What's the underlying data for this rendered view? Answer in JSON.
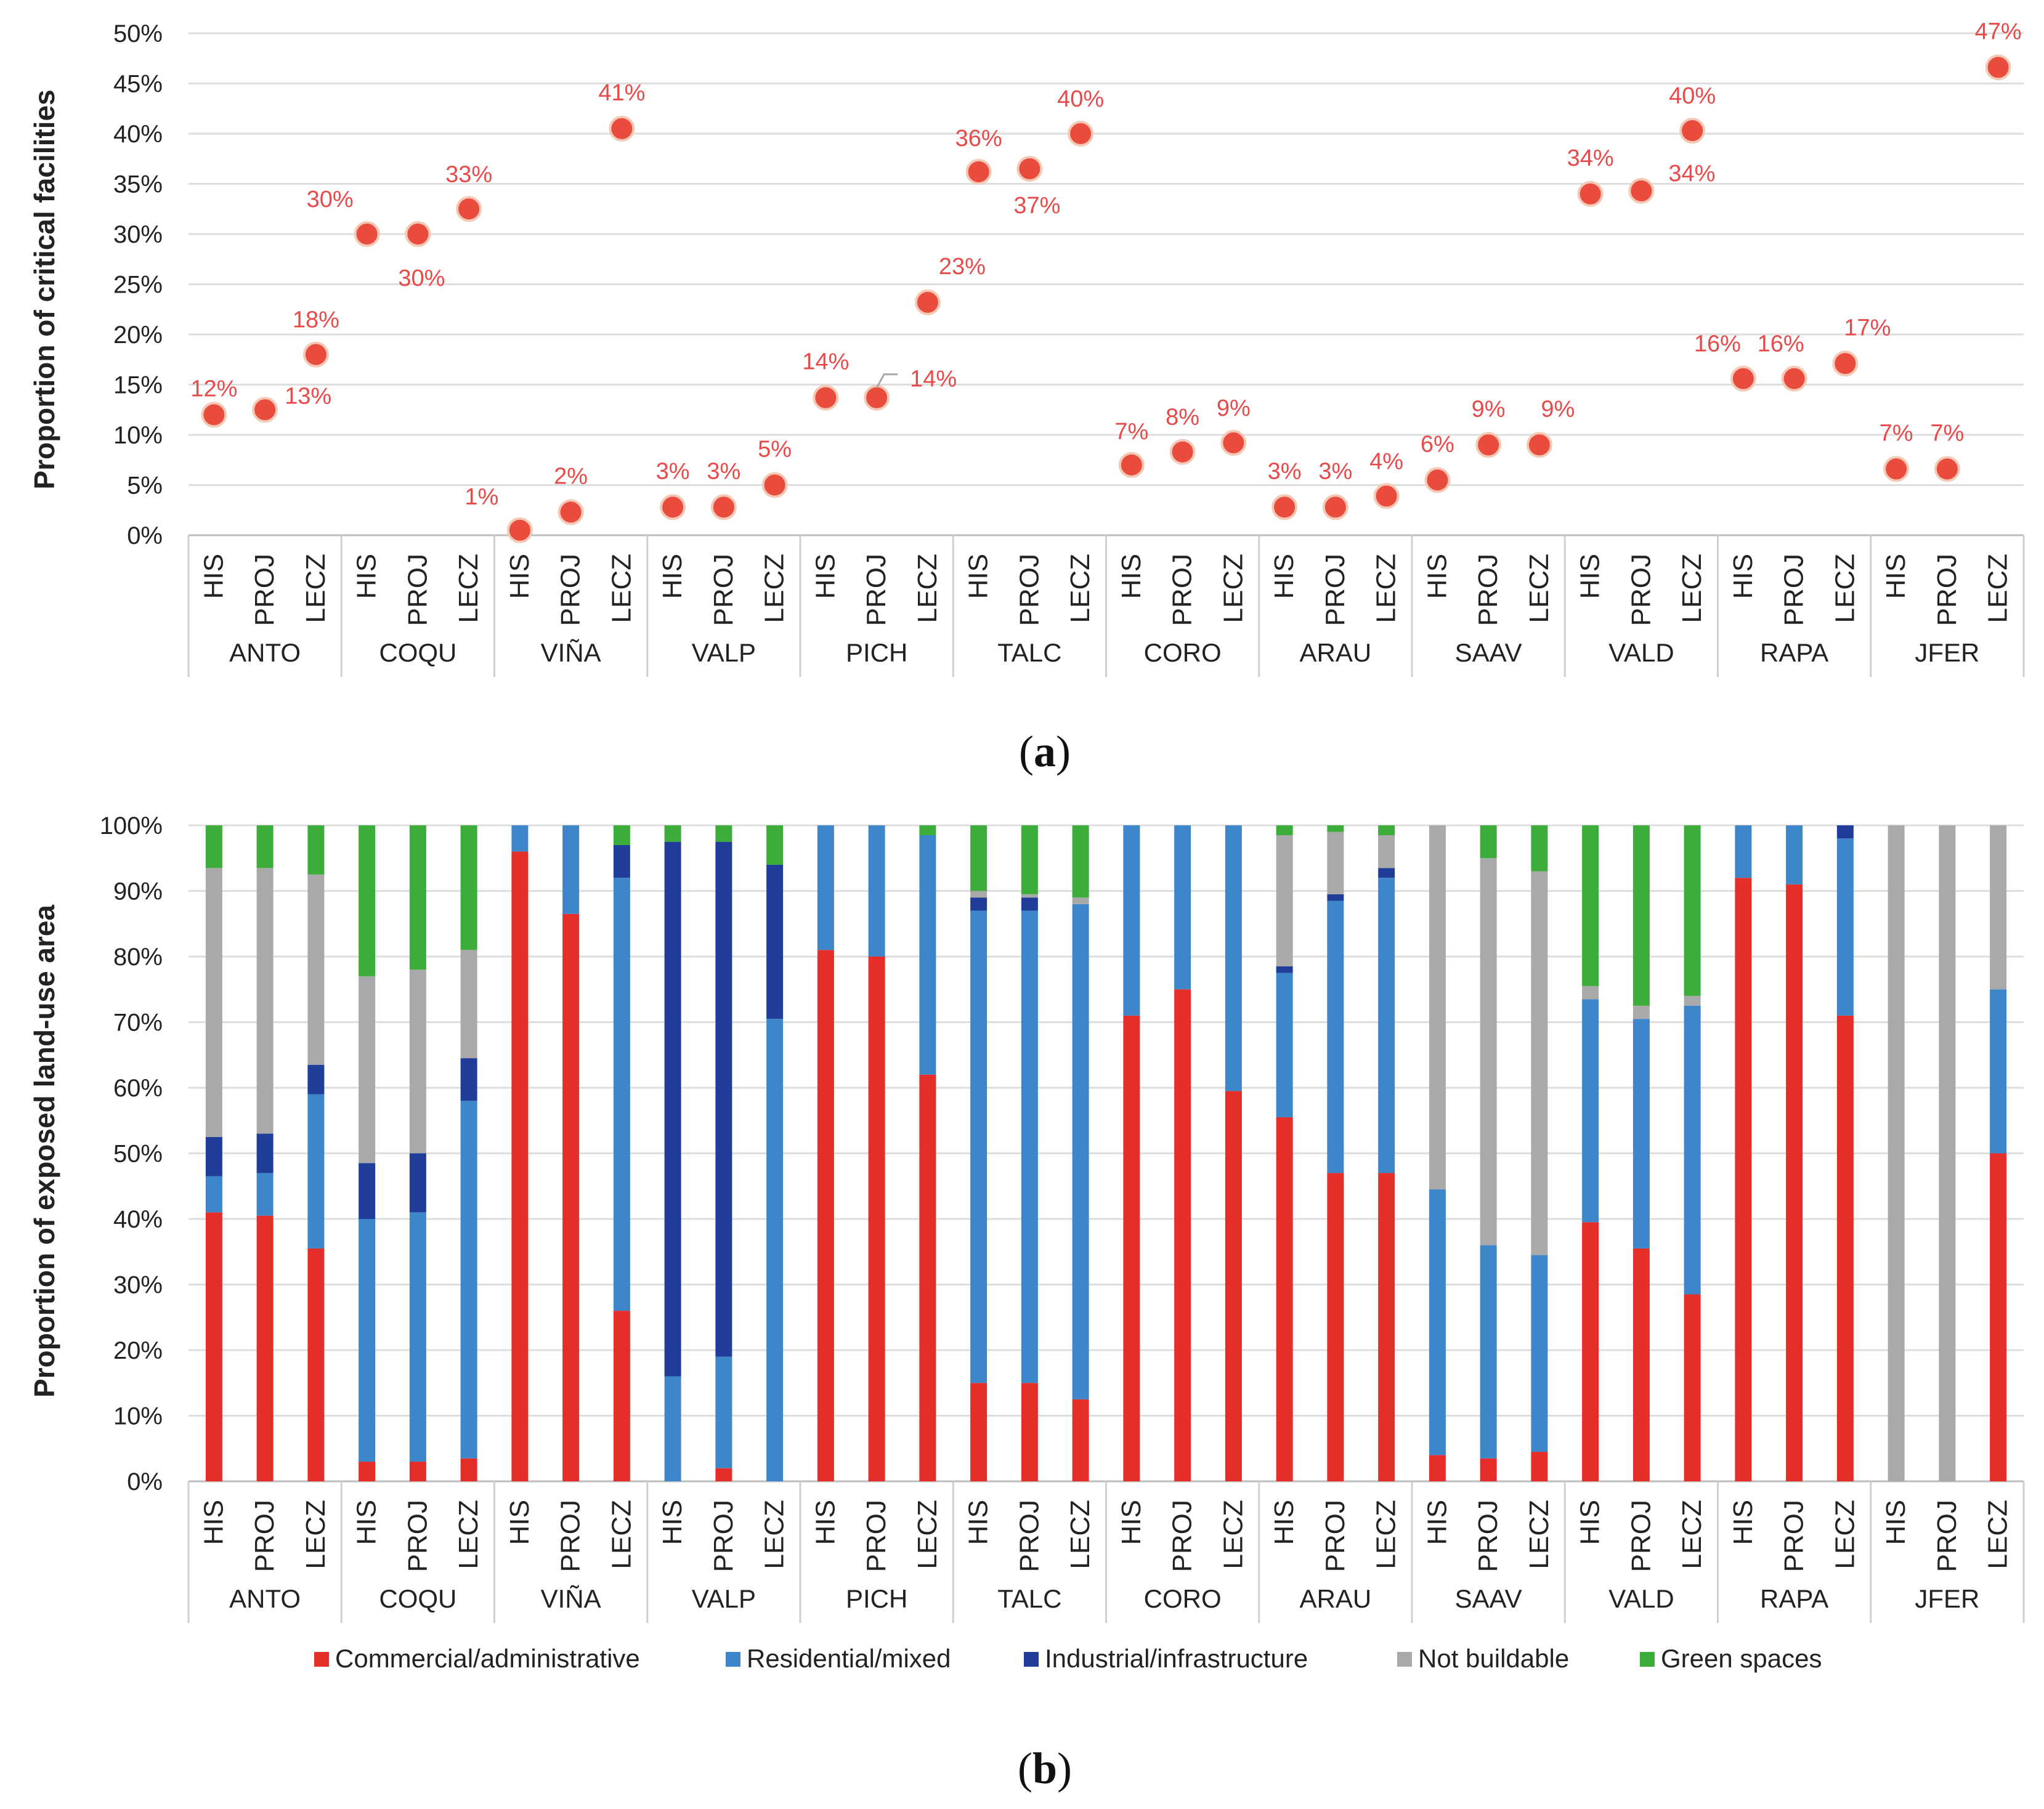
{
  "chart_data": [
    {
      "type": "scatter",
      "panel_label": "a",
      "ylabel": "Proportion of critical facilities",
      "ylim": [
        0,
        50
      ],
      "yticks": [
        "0%",
        "5%",
        "10%",
        "15%",
        "20%",
        "25%",
        "30%",
        "35%",
        "40%",
        "45%",
        "50%"
      ],
      "groups": [
        "ANTO",
        "COQU",
        "VIÑA",
        "VALP",
        "PICH",
        "TALC",
        "CORO",
        "ARAU",
        "SAAV",
        "VALD",
        "RAPA",
        "JFER"
      ],
      "scenarios": [
        "HIS",
        "PROJ",
        "LECZ"
      ],
      "color": "#e94b3c",
      "series": [
        {
          "name": "ANTO",
          "values": [
            12,
            12.5,
            18
          ],
          "labels": [
            "12%",
            "13%",
            "18%"
          ]
        },
        {
          "name": "COQU",
          "values": [
            30,
            30,
            32.5
          ],
          "labels": [
            "30%",
            "30%",
            "33%"
          ]
        },
        {
          "name": "VIÑA",
          "values": [
            0.5,
            2.3,
            40.5
          ],
          "labels": [
            "1%",
            "2%",
            "41%"
          ]
        },
        {
          "name": "VALP",
          "values": [
            2.8,
            2.8,
            5
          ],
          "labels": [
            "3%",
            "3%",
            "5%"
          ]
        },
        {
          "name": "PICH",
          "values": [
            13.7,
            13.7,
            23.2
          ],
          "labels": [
            "14%",
            "14%",
            "23%"
          ]
        },
        {
          "name": "TALC",
          "values": [
            36.2,
            36.5,
            40
          ],
          "labels": [
            "36%",
            "37%",
            "40%"
          ]
        },
        {
          "name": "CORO",
          "values": [
            7,
            8.3,
            9.2
          ],
          "labels": [
            "7%",
            "8%",
            "9%"
          ]
        },
        {
          "name": "ARAU",
          "values": [
            2.8,
            2.8,
            3.9
          ],
          "labels": [
            "3%",
            "3%",
            "4%"
          ]
        },
        {
          "name": "SAAV",
          "values": [
            5.5,
            9,
            9
          ],
          "labels": [
            "6%",
            "9%",
            "9%"
          ]
        },
        {
          "name": "VALD",
          "values": [
            34,
            34.3,
            40.3
          ],
          "labels": [
            "34%",
            "34%",
            "40%"
          ]
        },
        {
          "name": "RAPA",
          "values": [
            15.6,
            15.6,
            17.1
          ],
          "labels": [
            "16%",
            "16%",
            "17%"
          ]
        },
        {
          "name": "JFER",
          "values": [
            6.6,
            6.6,
            46.6
          ],
          "labels": [
            "7%",
            "7%",
            "47%"
          ]
        }
      ]
    },
    {
      "type": "bar",
      "stacked": true,
      "panel_label": "b",
      "ylabel": "Proportion of exposed land-use area",
      "ylim": [
        0,
        100
      ],
      "yticks": [
        "0%",
        "10%",
        "20%",
        "30%",
        "40%",
        "50%",
        "60%",
        "70%",
        "80%",
        "90%",
        "100%"
      ],
      "groups": [
        "ANTO",
        "COQU",
        "VIÑA",
        "VALP",
        "PICH",
        "TALC",
        "CORO",
        "ARAU",
        "SAAV",
        "VALD",
        "RAPA",
        "JFER"
      ],
      "scenarios": [
        "HIS",
        "PROJ",
        "LECZ"
      ],
      "legend": "bottom",
      "series": [
        {
          "name": "Commercial/administrative",
          "color": "#e52d2a",
          "values": [
            41,
            40.5,
            35.5,
            3,
            3,
            3.5,
            96,
            86.5,
            26,
            0,
            2,
            0,
            81,
            80,
            62,
            15,
            15,
            12.5,
            71,
            75,
            59.5,
            55.5,
            47,
            47,
            4,
            3.5,
            4.5,
            39.5,
            35.5,
            28.5,
            92,
            91,
            71,
            0,
            0,
            50
          ]
        },
        {
          "name": "Residential/mixed",
          "color": "#3d86c9",
          "values": [
            5.5,
            6.5,
            23.5,
            37,
            38,
            54.5,
            4,
            13.5,
            66,
            16,
            17,
            70.5,
            19,
            20,
            36.5,
            72,
            72,
            75.5,
            29,
            25,
            40.5,
            22,
            41.5,
            45,
            40.5,
            32.5,
            30,
            34,
            35,
            44,
            8,
            9,
            27,
            0,
            0,
            25
          ]
        },
        {
          "name": "Industrial/infrastructure",
          "color": "#1f3d99",
          "values": [
            6,
            6,
            4.5,
            8.5,
            9,
            6.5,
            0,
            0,
            5,
            81.5,
            78.5,
            23.5,
            0,
            0,
            0,
            2,
            2,
            0,
            0,
            0,
            0,
            1,
            1,
            1.5,
            0,
            0,
            0,
            0,
            0,
            0,
            0,
            0,
            2,
            0,
            0,
            0
          ]
        },
        {
          "name": "Not buildable",
          "color": "#a9a9a9",
          "values": [
            41,
            40.5,
            29,
            28.5,
            28,
            16.5,
            0,
            0,
            0,
            0,
            0,
            0,
            0,
            0,
            0,
            1,
            0.5,
            1,
            0,
            0,
            0,
            20,
            9.5,
            5,
            55.5,
            59,
            58.5,
            2,
            2,
            1.5,
            0,
            0,
            0,
            100,
            100,
            25
          ]
        },
        {
          "name": "Green spaces",
          "color": "#3cad3a",
          "values": [
            6.5,
            6.5,
            7.5,
            23,
            22,
            19,
            0,
            0,
            3,
            2.5,
            2.5,
            6,
            0,
            0,
            1.5,
            10,
            10.5,
            11,
            0,
            0,
            0,
            1.5,
            1,
            1.5,
            0,
            5,
            7,
            24.5,
            27.5,
            26,
            0,
            0,
            0,
            0,
            0,
            0
          ]
        }
      ]
    }
  ]
}
